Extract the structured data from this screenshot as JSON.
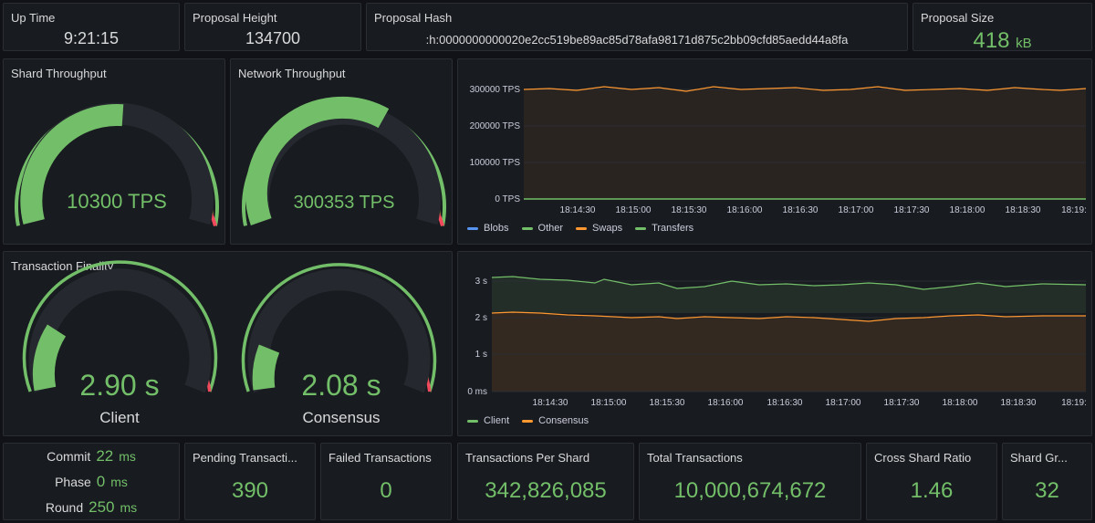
{
  "colors": {
    "green": "#73bf69",
    "orange": "#ff9830",
    "blue": "#5794f2",
    "red": "#f2495c",
    "yellow": "#fade2a"
  },
  "uptime": {
    "title": "Up Time",
    "value": "9:21:15"
  },
  "height": {
    "title": "Proposal Height",
    "value": "134700"
  },
  "hash": {
    "title": "Proposal Hash",
    "value": ":h:0000000000020e2cc519be89ac85d78afa98171d875c2bb09cfd85aedd44a8fa"
  },
  "size": {
    "title": "Proposal Size",
    "value": "418",
    "unit": "kB"
  },
  "shard_tp": {
    "title": "Shard Throughput",
    "value_text": "10300 TPS"
  },
  "net_tp": {
    "title": "Network Throughput",
    "value_text": "300353 TPS"
  },
  "finality": {
    "title": "Transaction Finality",
    "client": {
      "value_text": "2.90 s",
      "label": "Client"
    },
    "consensus": {
      "value_text": "2.08 s",
      "label": "Consensus"
    }
  },
  "tps_chart": {
    "y_ticks": [
      "300000 TPS",
      "200000 TPS",
      "100000 TPS",
      "0 TPS"
    ],
    "x_ticks": [
      "18:14:30",
      "18:15:00",
      "18:15:30",
      "18:16:00",
      "18:16:30",
      "18:17:00",
      "18:17:30",
      "18:18:00",
      "18:18:30",
      "18:19:"
    ],
    "legend": [
      {
        "name": "Blobs",
        "color": "#5794f2"
      },
      {
        "name": "Other",
        "color": "#73bf69"
      },
      {
        "name": "Swaps",
        "color": "#ff9830"
      },
      {
        "name": "Transfers",
        "color": "#73bf69"
      }
    ]
  },
  "fin_chart": {
    "y_ticks": [
      "3 s",
      "2 s",
      "1 s",
      "0 ms"
    ],
    "x_ticks": [
      "18:14:30",
      "18:15:00",
      "18:15:30",
      "18:16:00",
      "18:16:30",
      "18:17:00",
      "18:17:30",
      "18:18:00",
      "18:18:30",
      "18:19:"
    ],
    "legend": [
      {
        "name": "Client",
        "color": "#73bf69"
      },
      {
        "name": "Consensus",
        "color": "#ff9830"
      }
    ]
  },
  "rounds": {
    "commit": {
      "label": "Commit",
      "value": "22",
      "unit": "ms"
    },
    "phase": {
      "label": "Phase",
      "value": "0",
      "unit": "ms"
    },
    "round": {
      "label": "Round",
      "value": "250",
      "unit": "ms"
    }
  },
  "pending": {
    "title": "Pending Transacti...",
    "value": "390"
  },
  "failed": {
    "title": "Failed Transactions",
    "value": "0"
  },
  "per_shard": {
    "title": "Transactions Per Shard",
    "value": "342,826,085"
  },
  "total": {
    "title": "Total Transactions",
    "value": "10,000,674,672"
  },
  "cross": {
    "title": "Cross Shard Ratio",
    "value": "1.46"
  },
  "shard_gr": {
    "title": "Shard Gr...",
    "value": "32"
  }
}
